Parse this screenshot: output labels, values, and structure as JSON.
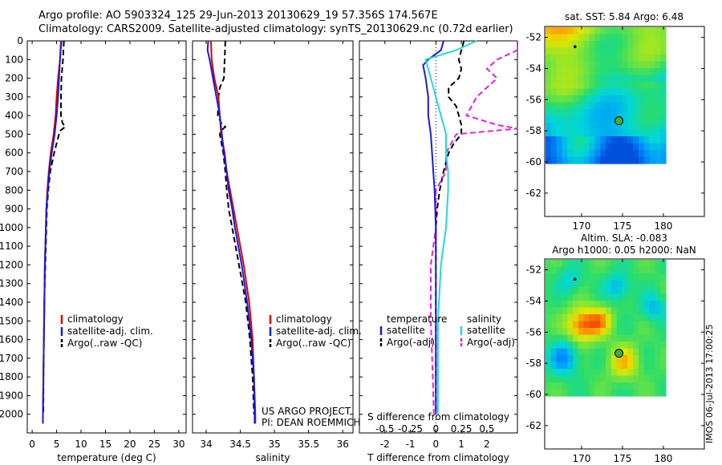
{
  "header": {
    "line1": "Argo profile: AO 5903324_125 29-Jun-2013 20130629_19 57.356S 174.567E",
    "line2": "Climatology: CARS2009. Satellite-adjusted climatology: synTS_20130629.nc (0.72d earlier)"
  },
  "footer_stamp": "IMOS 06-Jul-2013 17:00:25",
  "colors": {
    "climatology": "#dd0000",
    "satellite": "#1a1adc",
    "argo": "#000000",
    "sal_satellite": "#22d8e0",
    "sal_argo": "#e020e0",
    "marker_fill": "#3fae3a"
  },
  "depth_ticks": [
    "0",
    "100",
    "200",
    "300",
    "400",
    "500",
    "600",
    "700",
    "800",
    "900",
    "1000",
    "1100",
    "1200",
    "1300",
    "1400",
    "1500",
    "1600",
    "1700",
    "1800",
    "1900",
    "2000"
  ],
  "chart_data": [
    {
      "type": "line",
      "name": "temperature",
      "xlabel": "temperature (deg C)",
      "ylabel": "",
      "xlim": [
        -1,
        31.5
      ],
      "ylim": [
        2100,
        0
      ],
      "x_ticks": [
        "0",
        "5",
        "10",
        "15",
        "20",
        "25",
        "30"
      ],
      "legend": {
        "placement": "lower-middle",
        "entries": [
          "climatology",
          "satellite-adj. clim.",
          "Argo(..raw -QC)"
        ]
      },
      "series": [
        {
          "name": "climatology",
          "style": "solid",
          "points": [
            [
              0,
              5.9
            ],
            [
              50,
              5.8
            ],
            [
              100,
              5.7
            ],
            [
              150,
              5.5
            ],
            [
              200,
              5.3
            ],
            [
              300,
              5.0
            ],
            [
              400,
              4.8
            ],
            [
              500,
              4.4
            ],
            [
              600,
              3.8
            ],
            [
              700,
              3.4
            ],
            [
              800,
              3.1
            ],
            [
              900,
              2.9
            ],
            [
              1000,
              2.8
            ],
            [
              1200,
              2.6
            ],
            [
              1400,
              2.5
            ],
            [
              1600,
              2.4
            ],
            [
              1800,
              2.3
            ],
            [
              2000,
              2.2
            ],
            [
              2050,
              2.2
            ]
          ]
        },
        {
          "name": "satellite-adj. clim.",
          "style": "solid",
          "points": [
            [
              0,
              6.0
            ],
            [
              100,
              5.7
            ],
            [
              200,
              5.5
            ],
            [
              300,
              5.3
            ],
            [
              400,
              5.0
            ],
            [
              500,
              4.6
            ],
            [
              600,
              4.0
            ],
            [
              700,
              3.5
            ],
            [
              800,
              3.2
            ],
            [
              900,
              2.9
            ],
            [
              1000,
              2.8
            ],
            [
              1200,
              2.6
            ],
            [
              1400,
              2.5
            ],
            [
              1600,
              2.4
            ],
            [
              1800,
              2.3
            ],
            [
              2000,
              2.2
            ],
            [
              2050,
              2.2
            ]
          ]
        },
        {
          "name": "Argo(..raw -QC)",
          "style": "dashed",
          "points": [
            [
              0,
              6.5
            ],
            [
              50,
              6.4
            ],
            [
              100,
              6.3
            ],
            [
              200,
              6.0
            ],
            [
              300,
              5.9
            ],
            [
              400,
              5.9
            ],
            [
              440,
              6.2
            ],
            [
              460,
              6.8
            ],
            [
              480,
              5.8
            ],
            [
              500,
              5.5
            ],
            [
              600,
              4.5
            ],
            [
              700,
              3.7
            ],
            [
              800,
              3.3
            ],
            [
              900,
              3.0
            ],
            [
              1000,
              2.9
            ],
            [
              1200,
              2.7
            ],
            [
              1400,
              2.5
            ],
            [
              1600,
              2.4
            ],
            [
              1800,
              2.3
            ],
            [
              2000,
              2.3
            ]
          ]
        }
      ]
    },
    {
      "type": "line",
      "name": "salinity",
      "xlabel": "salinity",
      "ylabel": "",
      "xlim": [
        33.8,
        36.15
      ],
      "ylim": [
        2100,
        0
      ],
      "x_ticks": [
        "34",
        "34.5",
        "35",
        "35.5",
        "36"
      ],
      "legend": {
        "placement": "lower-middle",
        "entries": [
          "climatology",
          "satellite-adj. clim.",
          "Argo(..raw -QC)"
        ]
      },
      "annotations": [
        "US ARGO PROJECT",
        "PI: DEAN ROEMMICH"
      ],
      "series": [
        {
          "name": "climatology",
          "style": "solid",
          "points": [
            [
              0,
              34.07
            ],
            [
              100,
              34.08
            ],
            [
              150,
              34.1
            ],
            [
              200,
              34.12
            ],
            [
              250,
              34.15
            ],
            [
              300,
              34.18
            ],
            [
              400,
              34.2
            ],
            [
              500,
              34.22
            ],
            [
              600,
              34.27
            ],
            [
              700,
              34.3
            ],
            [
              800,
              34.35
            ],
            [
              900,
              34.4
            ],
            [
              1000,
              34.45
            ],
            [
              1200,
              34.55
            ],
            [
              1400,
              34.63
            ],
            [
              1600,
              34.68
            ],
            [
              1800,
              34.7
            ],
            [
              2000,
              34.72
            ],
            [
              2050,
              34.72
            ]
          ]
        },
        {
          "name": "satellite-adj. clim.",
          "style": "solid",
          "points": [
            [
              0,
              34.03
            ],
            [
              50,
              34.02
            ],
            [
              100,
              34.05
            ],
            [
              200,
              34.1
            ],
            [
              300,
              34.15
            ],
            [
              400,
              34.2
            ],
            [
              500,
              34.23
            ],
            [
              600,
              34.26
            ],
            [
              700,
              34.3
            ],
            [
              800,
              34.33
            ],
            [
              900,
              34.38
            ],
            [
              1000,
              34.42
            ],
            [
              1200,
              34.52
            ],
            [
              1400,
              34.6
            ],
            [
              1600,
              34.66
            ],
            [
              1800,
              34.7
            ],
            [
              2000,
              34.71
            ],
            [
              2050,
              34.71
            ]
          ]
        },
        {
          "name": "Argo(..raw -QC)",
          "style": "dashed",
          "points": [
            [
              0,
              34.28
            ],
            [
              100,
              34.27
            ],
            [
              200,
              34.26
            ],
            [
              250,
              34.2
            ],
            [
              300,
              34.18
            ],
            [
              400,
              34.17
            ],
            [
              440,
              34.22
            ],
            [
              460,
              34.28
            ],
            [
              480,
              34.22
            ],
            [
              500,
              34.2
            ],
            [
              600,
              34.25
            ],
            [
              700,
              34.28
            ],
            [
              800,
              34.3
            ],
            [
              900,
              34.33
            ],
            [
              1000,
              34.38
            ],
            [
              1200,
              34.48
            ],
            [
              1400,
              34.58
            ],
            [
              1600,
              34.64
            ],
            [
              1800,
              34.68
            ],
            [
              2000,
              34.7
            ]
          ]
        }
      ]
    },
    {
      "type": "line",
      "name": "difference",
      "xlabel": "T difference from climatology",
      "xlabel_top": "S difference from climatology",
      "ylabel": "",
      "xlim": [
        -3,
        3.2
      ],
      "ylim": [
        2100,
        0
      ],
      "x_ticks": [
        "-2",
        "-1",
        "0",
        "1",
        "2"
      ],
      "x_ticks_salinity": [
        "-0.5",
        "-0.25",
        "0",
        "0.25",
        "0.5"
      ],
      "legend": {
        "placement": "lower",
        "entries": [
          "temperature",
          "satellite",
          "Argo(-adj)",
          "salinity",
          "satellite",
          "Argo(-adj)"
        ]
      },
      "series": [
        {
          "name": "T satellite",
          "style": "solid",
          "points": [
            [
              0,
              0.3
            ],
            [
              50,
              0.2
            ],
            [
              100,
              -0.3
            ],
            [
              130,
              -0.5
            ],
            [
              200,
              -0.4
            ],
            [
              300,
              -0.3
            ],
            [
              400,
              -0.3
            ],
            [
              500,
              -0.2
            ],
            [
              600,
              -0.15
            ],
            [
              700,
              -0.1
            ],
            [
              800,
              -0.05
            ],
            [
              1000,
              0
            ],
            [
              1200,
              0
            ],
            [
              1500,
              0
            ],
            [
              1800,
              0
            ],
            [
              2000,
              0
            ]
          ]
        },
        {
          "name": "T Argo(-adj)",
          "style": "dashed",
          "points": [
            [
              0,
              1.1
            ],
            [
              50,
              1.0
            ],
            [
              100,
              0.9
            ],
            [
              150,
              1.0
            ],
            [
              200,
              0.9
            ],
            [
              250,
              0.5
            ],
            [
              300,
              0.5
            ],
            [
              350,
              0.8
            ],
            [
              400,
              0.9
            ],
            [
              450,
              1.0
            ],
            [
              500,
              1.0
            ],
            [
              550,
              0.7
            ],
            [
              600,
              0.5
            ],
            [
              700,
              0.3
            ],
            [
              800,
              0.15
            ],
            [
              900,
              0.05
            ],
            [
              1000,
              0
            ],
            [
              1200,
              0
            ],
            [
              1500,
              0
            ],
            [
              1800,
              0
            ],
            [
              2000,
              0
            ]
          ]
        },
        {
          "name": "S satellite",
          "style": "solid",
          "points": [
            [
              0,
              0.4
            ],
            [
              50,
              0.2
            ],
            [
              100,
              -0.1
            ],
            [
              200,
              -0.05
            ],
            [
              300,
              0
            ],
            [
              400,
              0.05
            ],
            [
              500,
              0.1
            ],
            [
              600,
              0.1
            ],
            [
              700,
              0.12
            ],
            [
              800,
              0.12
            ],
            [
              1000,
              0.1
            ],
            [
              1200,
              0.05
            ],
            [
              1500,
              0.02
            ],
            [
              1800,
              0.02
            ],
            [
              2000,
              0.02
            ]
          ]
        },
        {
          "name": "S Argo(-adj)",
          "style": "dashed",
          "points": [
            [
              0,
              0.8
            ],
            [
              50,
              0.8
            ],
            [
              100,
              0.6
            ],
            [
              150,
              0.5
            ],
            [
              200,
              0.6
            ],
            [
              300,
              0.4
            ],
            [
              400,
              0.3
            ],
            [
              450,
              0.6
            ],
            [
              470,
              0.8
            ],
            [
              500,
              0.2
            ],
            [
              600,
              0.1
            ],
            [
              700,
              0.1
            ],
            [
              800,
              0
            ],
            [
              1000,
              0
            ],
            [
              1200,
              -0.05
            ],
            [
              1500,
              -0.05
            ],
            [
              1800,
              -0.03
            ],
            [
              2000,
              -0.02
            ]
          ]
        }
      ]
    },
    {
      "type": "heatmap",
      "name": "sst_map",
      "title": "sat. SST: 5.84  Argo: 6.48",
      "x_ticks": [
        "170",
        "175",
        "180"
      ],
      "y_ticks": [
        "-52",
        "-54",
        "-56",
        "-58",
        "-60",
        "-62"
      ],
      "xlim": [
        165.5,
        185
      ],
      "ylim": [
        -63.5,
        -51.3
      ],
      "marker": {
        "lon": 174.567,
        "lat": -57.356
      }
    },
    {
      "type": "heatmap",
      "name": "sla_map",
      "title": "Altim. SLA: -0.083",
      "subtitle": "Argo h1000: 0.05 h2000: NaN",
      "x_ticks": [
        "170",
        "175",
        "180"
      ],
      "y_ticks": [
        "-52",
        "-54",
        "-56",
        "-58",
        "-60",
        "-62"
      ],
      "xlim": [
        165.5,
        185
      ],
      "ylim": [
        -63.5,
        -51.3
      ],
      "marker": {
        "lon": 174.567,
        "lat": -57.356
      }
    }
  ]
}
